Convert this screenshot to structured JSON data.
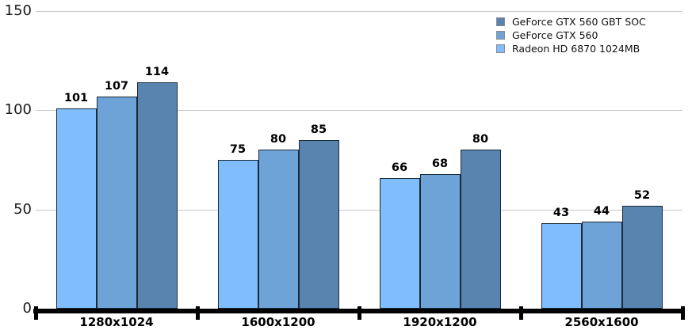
{
  "chart_data": {
    "type": "bar",
    "title": "",
    "xlabel": "",
    "ylabel": "",
    "categories": [
      "1280x1024",
      "1600x1200",
      "1920x1200",
      "2560x1600"
    ],
    "series": [
      {
        "name": "Radeon HD 6870 1024MB",
        "color": "#7fbdfc",
        "values": [
          101,
          75,
          66,
          43
        ]
      },
      {
        "name": "GeForce GTX 560",
        "color": "#6ea3d8",
        "values": [
          107,
          80,
          68,
          44
        ]
      },
      {
        "name": "GeForce GTX 560 GBT SOC",
        "color": "#5884af",
        "values": [
          114,
          85,
          80,
          52
        ]
      }
    ],
    "legend": [
      "GeForce GTX 560 GBT SOC",
      "GeForce GTX 560",
      "Radeon HD 6870 1024MB"
    ],
    "legend_position": "top-right",
    "yticks": [
      0,
      50,
      100,
      150
    ],
    "ylim": [
      0,
      150
    ],
    "grid": true,
    "value_labels": true,
    "colors": {
      "gridline": "#c8c8c8",
      "axis": "#000000",
      "bar_border": "#1b2836",
      "background": "#ffffff"
    }
  }
}
